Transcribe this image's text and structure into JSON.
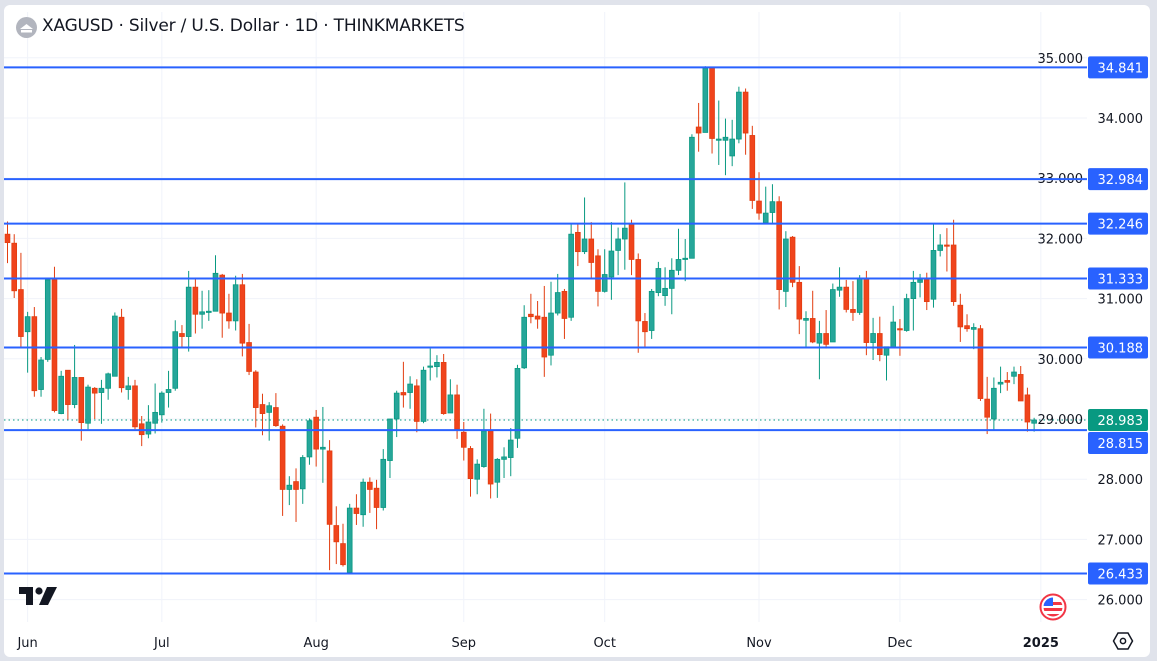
{
  "header": {
    "title": "XAGUSD · Silver / U.S. Dollar · 1D · THINKMARKETS"
  },
  "colors": {
    "up": "#26a69a",
    "up_border": "#089981",
    "down": "#f0441c",
    "down_border": "#e23d10",
    "level_line": "#2962ff",
    "last_price": "#089981",
    "grid": "#f0f3fa"
  },
  "icons": {
    "symbol_logo": "silver-symbol-icon",
    "brand_logo": "tradingview-logo-icon",
    "flag": "us-flag-icon",
    "settings": "settings-hexagon-icon"
  },
  "chart_data": {
    "type": "candlestick",
    "timeframe": "1D",
    "ylim": [
      25.9,
      35.2
    ],
    "grid": true,
    "price_ticks": [
      "26.000",
      "27.000",
      "28.000",
      "29.000",
      "30.000",
      "31.000",
      "32.000",
      "33.000",
      "34.000",
      "35.000"
    ],
    "time_ticks": [
      {
        "label": "Jun",
        "index": 3
      },
      {
        "label": "Jul",
        "index": 23
      },
      {
        "label": "Aug",
        "index": 46
      },
      {
        "label": "Sep",
        "index": 68
      },
      {
        "label": "Oct",
        "index": 89
      },
      {
        "label": "Nov",
        "index": 112
      },
      {
        "label": "Dec",
        "index": 133
      },
      {
        "label": "2025",
        "index": 154,
        "bold": true
      }
    ],
    "levels": [
      "34.841",
      "32.984",
      "32.246",
      "31.333",
      "30.188",
      "28.815",
      "26.433"
    ],
    "last_price": "28.983",
    "candles_ohlc": [
      [
        32.07,
        32.28,
        31.59,
        31.93
      ],
      [
        31.92,
        32.07,
        31.01,
        31.13
      ],
      [
        31.15,
        31.76,
        30.18,
        30.37
      ],
      [
        30.45,
        30.78,
        29.77,
        30.7
      ],
      [
        30.7,
        30.86,
        29.37,
        29.47
      ],
      [
        29.49,
        30.03,
        29.37,
        29.98
      ],
      [
        29.99,
        31.31,
        29.95,
        31.31
      ],
      [
        31.31,
        31.53,
        29.11,
        29.14
      ],
      [
        29.09,
        29.8,
        29.08,
        29.71
      ],
      [
        29.81,
        29.81,
        28.99,
        29.24
      ],
      [
        29.24,
        30.23,
        29.18,
        29.69
      ],
      [
        29.69,
        29.69,
        28.64,
        28.94
      ],
      [
        28.93,
        29.57,
        28.83,
        29.53
      ],
      [
        29.51,
        29.53,
        29.0,
        29.43
      ],
      [
        29.44,
        29.65,
        28.92,
        29.51
      ],
      [
        29.51,
        29.77,
        29.32,
        29.75
      ],
      [
        29.71,
        30.77,
        29.71,
        30.71
      ],
      [
        30.69,
        30.83,
        29.44,
        29.52
      ],
      [
        29.49,
        29.7,
        29.32,
        29.55
      ],
      [
        29.55,
        29.65,
        28.83,
        28.87
      ],
      [
        28.92,
        29.05,
        28.55,
        28.74
      ],
      [
        28.75,
        29.23,
        28.68,
        28.95
      ],
      [
        28.93,
        29.59,
        28.76,
        29.11
      ],
      [
        29.07,
        29.46,
        28.94,
        29.43
      ],
      [
        29.44,
        29.8,
        29.19,
        29.49
      ],
      [
        29.51,
        30.64,
        29.47,
        30.45
      ],
      [
        30.42,
        30.56,
        30.2,
        30.37
      ],
      [
        30.37,
        31.46,
        30.12,
        31.19
      ],
      [
        31.19,
        31.34,
        30.42,
        30.74
      ],
      [
        30.74,
        31.13,
        30.5,
        30.78
      ],
      [
        30.77,
        31.14,
        30.63,
        30.79
      ],
      [
        30.79,
        31.72,
        30.79,
        31.42
      ],
      [
        31.39,
        31.41,
        30.35,
        30.76
      ],
      [
        30.76,
        31.08,
        30.5,
        30.63
      ],
      [
        30.63,
        31.38,
        30.47,
        31.23
      ],
      [
        31.23,
        31.41,
        30.04,
        30.26
      ],
      [
        30.27,
        30.58,
        29.73,
        29.79
      ],
      [
        29.78,
        29.81,
        28.86,
        29.19
      ],
      [
        29.24,
        29.42,
        28.73,
        29.09
      ],
      [
        29.11,
        29.28,
        28.64,
        29.22
      ],
      [
        29.19,
        29.43,
        28.87,
        28.89
      ],
      [
        28.88,
        28.91,
        27.39,
        27.83
      ],
      [
        27.83,
        28.05,
        27.57,
        27.9
      ],
      [
        27.96,
        28.18,
        27.29,
        27.83
      ],
      [
        27.84,
        28.4,
        27.59,
        28.36
      ],
      [
        28.37,
        29.01,
        28.24,
        28.97
      ],
      [
        29.03,
        29.15,
        28.21,
        28.5
      ],
      [
        28.5,
        29.2,
        27.94,
        28.53
      ],
      [
        28.47,
        28.65,
        26.49,
        27.25
      ],
      [
        27.23,
        27.55,
        26.59,
        26.96
      ],
      [
        26.93,
        27.26,
        26.55,
        26.58
      ],
      [
        26.45,
        27.59,
        26.45,
        27.52
      ],
      [
        27.52,
        27.75,
        27.24,
        27.43
      ],
      [
        27.41,
        28.01,
        27.21,
        27.95
      ],
      [
        27.95,
        28.03,
        27.44,
        27.83
      ],
      [
        27.85,
        27.99,
        27.17,
        27.53
      ],
      [
        27.53,
        28.5,
        27.48,
        28.33
      ],
      [
        28.31,
        29.0,
        28.02,
        29.0
      ],
      [
        29.0,
        29.47,
        28.7,
        29.43
      ],
      [
        29.44,
        29.95,
        29.19,
        29.4
      ],
      [
        29.44,
        29.71,
        29.17,
        29.58
      ],
      [
        29.55,
        29.66,
        28.78,
        28.96
      ],
      [
        28.96,
        29.87,
        28.93,
        29.81
      ],
      [
        29.86,
        30.17,
        29.64,
        29.88
      ],
      [
        29.87,
        30.06,
        29.69,
        29.94
      ],
      [
        29.94,
        30.08,
        29.07,
        29.09
      ],
      [
        29.1,
        29.66,
        29.1,
        29.4
      ],
      [
        29.4,
        29.57,
        28.67,
        28.83
      ],
      [
        28.78,
        28.95,
        28.31,
        28.53
      ],
      [
        28.51,
        28.55,
        27.71,
        28.01
      ],
      [
        28.0,
        28.33,
        27.75,
        28.25
      ],
      [
        28.21,
        29.17,
        28.19,
        28.8
      ],
      [
        28.8,
        29.09,
        27.68,
        27.92
      ],
      [
        27.95,
        28.35,
        27.69,
        28.33
      ],
      [
        28.33,
        28.53,
        28.02,
        28.37
      ],
      [
        28.36,
        28.85,
        28.05,
        28.65
      ],
      [
        28.68,
        29.9,
        28.52,
        29.84
      ],
      [
        29.85,
        30.89,
        29.83,
        30.69
      ],
      [
        30.74,
        31.08,
        30.59,
        30.7
      ],
      [
        30.71,
        30.96,
        30.5,
        30.66
      ],
      [
        30.69,
        31.21,
        29.7,
        30.03
      ],
      [
        30.06,
        31.28,
        29.89,
        30.76
      ],
      [
        30.76,
        31.41,
        30.72,
        31.1
      ],
      [
        31.12,
        31.16,
        30.33,
        30.67
      ],
      [
        30.69,
        32.24,
        30.63,
        32.07
      ],
      [
        32.1,
        32.25,
        31.54,
        31.78
      ],
      [
        31.78,
        32.68,
        31.74,
        31.99
      ],
      [
        31.99,
        32.27,
        31.34,
        31.6
      ],
      [
        31.71,
        31.82,
        30.87,
        31.12
      ],
      [
        31.12,
        31.82,
        31.1,
        31.4
      ],
      [
        31.36,
        32.27,
        30.98,
        31.79
      ],
      [
        31.8,
        32.18,
        31.39,
        31.99
      ],
      [
        31.99,
        32.93,
        31.48,
        32.17
      ],
      [
        32.25,
        32.31,
        31.39,
        31.65
      ],
      [
        31.65,
        31.75,
        30.1,
        30.63
      ],
      [
        30.62,
        30.76,
        30.2,
        30.45
      ],
      [
        30.47,
        31.16,
        30.33,
        31.12
      ],
      [
        31.1,
        31.61,
        31.04,
        31.5
      ],
      [
        31.05,
        31.52,
        30.88,
        31.17
      ],
      [
        31.17,
        31.67,
        30.74,
        31.47
      ],
      [
        31.47,
        32.16,
        31.39,
        31.65
      ],
      [
        31.67,
        31.99,
        31.29,
        31.67
      ],
      [
        31.67,
        33.73,
        31.67,
        33.68
      ],
      [
        33.85,
        34.25,
        33.44,
        33.75
      ],
      [
        33.76,
        34.86,
        33.76,
        34.83
      ],
      [
        34.83,
        34.84,
        33.41,
        33.66
      ],
      [
        33.65,
        34.29,
        33.22,
        33.65
      ],
      [
        33.63,
        33.99,
        33.05,
        33.68
      ],
      [
        33.37,
        33.97,
        33.2,
        33.65
      ],
      [
        33.65,
        34.52,
        33.58,
        34.43
      ],
      [
        34.43,
        34.49,
        33.39,
        33.75
      ],
      [
        33.71,
        33.87,
        32.49,
        32.63
      ],
      [
        32.62,
        33.1,
        32.31,
        32.42
      ],
      [
        32.26,
        32.86,
        32.26,
        32.42
      ],
      [
        32.43,
        32.9,
        32.24,
        32.61
      ],
      [
        32.61,
        32.7,
        30.82,
        31.15
      ],
      [
        31.12,
        32.12,
        30.86,
        31.99
      ],
      [
        32.02,
        32.04,
        31.19,
        31.27
      ],
      [
        31.27,
        31.54,
        30.41,
        30.66
      ],
      [
        30.64,
        30.79,
        30.19,
        30.67
      ],
      [
        30.67,
        31.13,
        30.26,
        30.28
      ],
      [
        30.26,
        30.63,
        29.66,
        30.42
      ],
      [
        30.42,
        30.81,
        30.17,
        30.24
      ],
      [
        30.28,
        31.25,
        30.28,
        31.15
      ],
      [
        31.14,
        31.52,
        31.03,
        31.19
      ],
      [
        31.19,
        31.31,
        30.77,
        30.82
      ],
      [
        30.82,
        31.29,
        30.63,
        30.77
      ],
      [
        30.77,
        31.39,
        30.73,
        31.33
      ],
      [
        31.33,
        31.46,
        30.06,
        30.27
      ],
      [
        30.27,
        30.68,
        29.98,
        30.42
      ],
      [
        30.42,
        30.7,
        29.96,
        30.07
      ],
      [
        30.06,
        30.2,
        29.64,
        30.2
      ],
      [
        30.19,
        30.88,
        30.19,
        30.61
      ],
      [
        30.5,
        30.66,
        30.05,
        30.49
      ],
      [
        30.47,
        31.08,
        30.45,
        31.0
      ],
      [
        31.0,
        31.46,
        30.47,
        31.27
      ],
      [
        31.27,
        31.41,
        31.02,
        31.31
      ],
      [
        31.31,
        31.43,
        30.81,
        30.95
      ],
      [
        30.99,
        32.24,
        30.85,
        31.8
      ],
      [
        31.8,
        32.07,
        31.7,
        31.89
      ],
      [
        31.89,
        32.17,
        31.45,
        31.88
      ],
      [
        31.89,
        32.31,
        30.88,
        30.95
      ],
      [
        30.89,
        31.08,
        30.28,
        30.53
      ],
      [
        30.55,
        30.74,
        30.45,
        30.5
      ],
      [
        30.49,
        30.59,
        30.16,
        30.52
      ],
      [
        30.5,
        30.56,
        29.3,
        29.34
      ],
      [
        29.33,
        29.7,
        28.75,
        29.03
      ],
      [
        29.0,
        29.69,
        28.82,
        29.51
      ],
      [
        29.58,
        29.87,
        29.43,
        29.61
      ],
      [
        29.64,
        29.78,
        29.47,
        29.61
      ],
      [
        29.71,
        29.87,
        29.58,
        29.78
      ],
      [
        29.74,
        29.88,
        29.3,
        29.3
      ],
      [
        29.4,
        29.52,
        28.79,
        28.95
      ],
      [
        28.93,
        29.02,
        28.79,
        28.983
      ]
    ]
  }
}
